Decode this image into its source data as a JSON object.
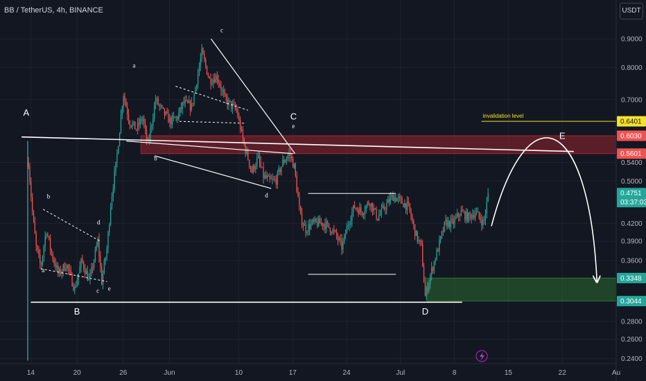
{
  "header": {
    "symbol": "BB / TetherUS, 4h, BINANCE",
    "currency": "USDT"
  },
  "colors": {
    "background": "#131722",
    "up": "#26a69a",
    "down": "#ef5350",
    "resistance_zone": "#b22833",
    "support_zone": "#2e7d32",
    "invalidation": "#f5e12b",
    "last_price": "#26a69a"
  },
  "icons": {
    "flash": "lightning-icon"
  },
  "chart_data": {
    "type": "candlestick",
    "timeframe": "4h",
    "yscale": "log",
    "ylim": [
      0.235,
      0.97
    ],
    "y_ticks": [
      0.9,
      0.8,
      0.7,
      0.54,
      0.5,
      0.42,
      0.39,
      0.36,
      0.28,
      0.26,
      0.24
    ],
    "y_tick_labels": [
      "0.9000",
      "0.8000",
      "0.7000",
      "0.5400",
      "0.5000",
      "0.4200",
      "0.3900",
      "0.3600",
      "0.2800",
      "0.2600",
      "0.2400"
    ],
    "x_ticks": [
      "14",
      "20",
      "26",
      "Jun",
      "10",
      "17",
      "24",
      "Jul",
      "8",
      "15",
      "22",
      "Au"
    ],
    "x_tick_positions_day": [
      14,
      20,
      26,
      32,
      41,
      48,
      55,
      62,
      69,
      76,
      83,
      90
    ],
    "x_range_days": [
      10,
      90
    ],
    "price_path": [
      [
        13.7,
        0.54
      ],
      [
        14.2,
        0.44
      ],
      [
        14.7,
        0.38
      ],
      [
        15.3,
        0.35
      ],
      [
        16.0,
        0.41
      ],
      [
        16.7,
        0.37
      ],
      [
        17.6,
        0.34
      ],
      [
        18.6,
        0.355
      ],
      [
        19.7,
        0.32
      ],
      [
        20.6,
        0.36
      ],
      [
        21.6,
        0.33
      ],
      [
        22.7,
        0.39
      ],
      [
        23.2,
        0.33
      ],
      [
        23.9,
        0.38
      ],
      [
        24.4,
        0.46
      ],
      [
        25.1,
        0.54
      ],
      [
        26.0,
        0.72
      ],
      [
        26.8,
        0.64
      ],
      [
        27.7,
        0.62
      ],
      [
        28.5,
        0.65
      ],
      [
        29.2,
        0.58
      ],
      [
        30.2,
        0.7
      ],
      [
        31.0,
        0.67
      ],
      [
        32.1,
        0.64
      ],
      [
        33.0,
        0.65
      ],
      [
        33.8,
        0.69
      ],
      [
        34.9,
        0.68
      ],
      [
        36.2,
        0.85
      ],
      [
        37.2,
        0.76
      ],
      [
        38.2,
        0.77
      ],
      [
        39.2,
        0.7
      ],
      [
        40.7,
        0.67
      ],
      [
        41.7,
        0.58
      ],
      [
        42.7,
        0.52
      ],
      [
        43.5,
        0.55
      ],
      [
        44.2,
        0.51
      ],
      [
        45.0,
        0.5
      ],
      [
        45.8,
        0.5
      ],
      [
        46.7,
        0.54
      ],
      [
        47.6,
        0.56
      ],
      [
        48.2,
        0.53
      ],
      [
        49.0,
        0.43
      ],
      [
        49.7,
        0.41
      ],
      [
        50.6,
        0.42
      ],
      [
        52.0,
        0.42
      ],
      [
        53.0,
        0.41
      ],
      [
        53.6,
        0.4
      ],
      [
        54.4,
        0.38
      ],
      [
        55.2,
        0.42
      ],
      [
        56.0,
        0.45
      ],
      [
        57.0,
        0.44
      ],
      [
        58.0,
        0.46
      ],
      [
        59.0,
        0.43
      ],
      [
        60.0,
        0.45
      ],
      [
        61.0,
        0.47
      ],
      [
        62.0,
        0.46
      ],
      [
        63.0,
        0.45
      ],
      [
        64.0,
        0.4
      ],
      [
        64.7,
        0.38
      ],
      [
        65.2,
        0.31
      ],
      [
        65.9,
        0.34
      ],
      [
        66.9,
        0.38
      ],
      [
        67.8,
        0.42
      ],
      [
        68.8,
        0.42
      ],
      [
        69.8,
        0.44
      ],
      [
        70.8,
        0.43
      ],
      [
        71.7,
        0.44
      ],
      [
        72.8,
        0.42
      ],
      [
        73.4,
        0.475
      ]
    ],
    "price_tags": [
      {
        "value": 0.6401,
        "label": "0.6401",
        "kind": "invalidation"
      },
      {
        "value": 0.603,
        "label": "0.6030",
        "kind": "resistance"
      },
      {
        "value": 0.5601,
        "label": "0.5601",
        "kind": "resistance"
      },
      {
        "value": 0.4751,
        "label": "0.4751",
        "sublabel": "03:37:03",
        "kind": "last"
      },
      {
        "value": 0.3348,
        "label": "0.3348",
        "kind": "support"
      },
      {
        "value": 0.3044,
        "label": "0.3044",
        "kind": "support"
      }
    ],
    "zones": [
      {
        "name": "resistance",
        "x": [
          28.3,
          90
        ],
        "y": [
          0.5601,
          0.603
        ]
      },
      {
        "name": "support",
        "x": [
          65.4,
          90
        ],
        "y": [
          0.3044,
          0.3348
        ]
      }
    ],
    "lines": [
      {
        "name": "invalidation-level",
        "label": "invalidation level",
        "x": [
          72.5,
          90
        ],
        "y": [
          0.6401,
          0.6401
        ]
      }
    ],
    "wave_labels": [
      {
        "text": "A",
        "x": 13.4,
        "y": 0.655,
        "size": "big"
      },
      {
        "text": "B",
        "x": 20.0,
        "y": 0.288,
        "size": "big"
      },
      {
        "text": "C",
        "x": 48.1,
        "y": 0.645,
        "size": "big"
      },
      {
        "text": "D",
        "x": 65.2,
        "y": 0.288,
        "size": "big"
      },
      {
        "text": "E",
        "x": 83.0,
        "y": 0.595,
        "size": "big"
      },
      {
        "text": "a",
        "x": 15.6,
        "y": 0.343
      },
      {
        "text": "b",
        "x": 16.3,
        "y": 0.465
      },
      {
        "text": "c",
        "x": 22.7,
        "y": 0.315
      },
      {
        "text": "d",
        "x": 22.8,
        "y": 0.418
      },
      {
        "text": "e",
        "x": 24.2,
        "y": 0.318
      },
      {
        "text": "a",
        "x": 27.4,
        "y": 0.8
      },
      {
        "text": "b",
        "x": 30.2,
        "y": 0.545
      },
      {
        "text": "c",
        "x": 38.8,
        "y": 0.925
      },
      {
        "text": "d",
        "x": 44.6,
        "y": 0.467
      },
      {
        "text": "e",
        "x": 48.1,
        "y": 0.622
      }
    ]
  }
}
